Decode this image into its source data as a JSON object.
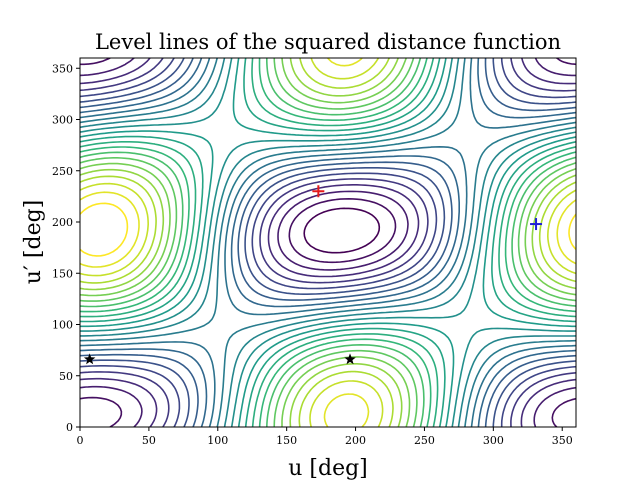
{
  "chart_data": {
    "type": "contour",
    "title": "Level lines of the squared distance function",
    "xlabel": "u [deg]",
    "ylabel": "u′ [deg]",
    "xlim": [
      0,
      360
    ],
    "ylim": [
      0,
      360
    ],
    "xticks": [
      0,
      50,
      100,
      150,
      200,
      250,
      300,
      350
    ],
    "yticks": [
      0,
      50,
      100,
      150,
      200,
      250,
      300,
      350
    ],
    "grid": false,
    "colormap": "viridis",
    "level_count": 25,
    "markers": [
      {
        "kind": "plus",
        "color": "#e41a1c",
        "x": 173,
        "y": 230
      },
      {
        "kind": "plus",
        "color": "#1f1fd6",
        "x": 331,
        "y": 198
      },
      {
        "kind": "star",
        "color": "#000000",
        "x": 7,
        "y": 66
      },
      {
        "kind": "star",
        "color": "#000000",
        "x": 196,
        "y": 66
      }
    ]
  }
}
